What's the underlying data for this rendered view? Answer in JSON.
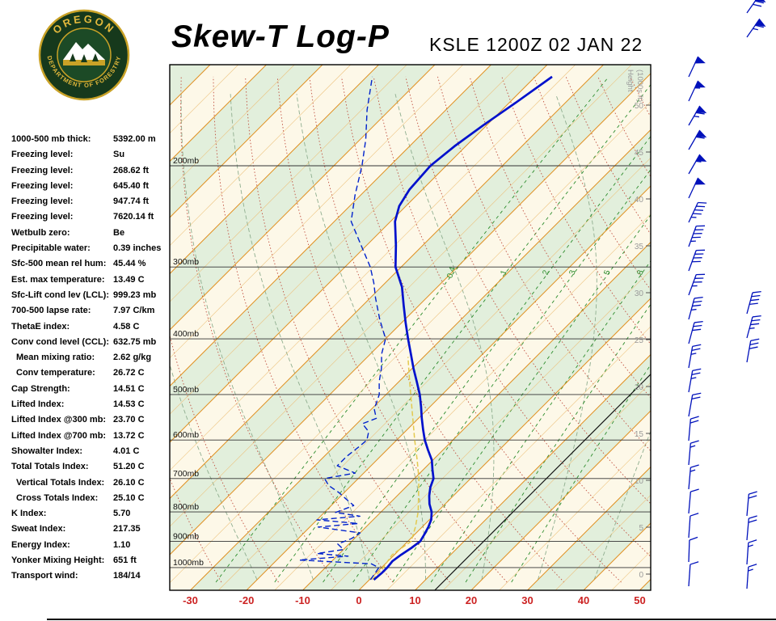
{
  "header": {
    "title": "Skew-T Log-P",
    "station_line": "KSLE 1200Z 02 JAN 22",
    "logo_top": "OREGON",
    "logo_bottom": "DEPARTMENT OF FORESTRY"
  },
  "indices": [
    {
      "label": "1000-500 mb thick:",
      "value": "5392.00 m"
    },
    {
      "label": "Freezing level:",
      "value": "Su"
    },
    {
      "label": "Freezing level:",
      "value": "268.62 ft"
    },
    {
      "label": "Freezing level:",
      "value": "645.40 ft"
    },
    {
      "label": "Freezing level:",
      "value": "947.74 ft"
    },
    {
      "label": "Freezing level:",
      "value": "7620.14 ft"
    },
    {
      "label": "Wetbulb zero:",
      "value": "Be"
    },
    {
      "label": "Precipitable water:",
      "value": "0.39 inches"
    },
    {
      "label": "Sfc-500 mean rel hum:",
      "value": "45.44 %"
    },
    {
      "label": "Est. max temperature:",
      "value": "13.49 C"
    },
    {
      "label": "Sfc-Lift cond lev (LCL):",
      "value": "999.23 mb"
    },
    {
      "label": "700-500 lapse rate:",
      "value": "7.97 C/km"
    },
    {
      "label": "ThetaE index:",
      "value": "4.58 C"
    },
    {
      "label": "Conv cond level (CCL):",
      "value": "632.75 mb"
    },
    {
      "label": "Mean mixing ratio:",
      "value": "2.62 g/kg",
      "indent": true
    },
    {
      "label": "Conv temperature:",
      "value": "26.72 C",
      "indent": true
    },
    {
      "label": "Cap Strength:",
      "value": "14.51 C"
    },
    {
      "label": "Lifted Index:",
      "value": "14.53 C"
    },
    {
      "label": "Lifted Index @300 mb:",
      "value": "23.70 C"
    },
    {
      "label": "Lifted Index @700 mb:",
      "value": "13.72 C"
    },
    {
      "label": "Showalter Index:",
      "value": "4.01 C"
    },
    {
      "label": "Total Totals Index:",
      "value": "51.20 C"
    },
    {
      "label": "Vertical Totals Index:",
      "value": "26.10 C",
      "indent": true
    },
    {
      "label": "Cross Totals Index:",
      "value": "25.10 C",
      "indent": true
    },
    {
      "label": "K Index:",
      "value": "5.70"
    },
    {
      "label": "Sweat Index:",
      "value": "217.35"
    },
    {
      "label": "Energy Index:",
      "value": "1.10"
    },
    {
      "label": "Yonker Mixing Height:",
      "value": "651 ft"
    },
    {
      "label": "Transport wind:",
      "value": "184/14"
    }
  ],
  "chart_data": {
    "type": "line",
    "title": "Skew-T Log-P sounding",
    "station": "KSLE 1200Z 02 JAN 22",
    "pressure_labels": [
      "200mb",
      "300mb",
      "400mb",
      "500mb",
      "600mb",
      "700mb",
      "800mb",
      "900mb",
      "1000mb"
    ],
    "pressure_lines_mb": [
      200,
      300,
      400,
      500,
      600,
      700,
      800,
      900,
      1000
    ],
    "temp_ticks_c": [
      -30,
      -20,
      -10,
      0,
      10,
      20,
      30,
      40,
      50
    ],
    "height_labels_kft": [
      0,
      5,
      10,
      15,
      20,
      25,
      30,
      35,
      40,
      45,
      50
    ],
    "height_axis_title_1": "Height",
    "height_axis_title_2": "(1000s ft)",
    "mixing_ratio_gkg": [
      0.4,
      1,
      2,
      3,
      5,
      8
    ],
    "mixing_ratio_extra": [
      12,
      20
    ],
    "dry_adiabats_theta_c": [
      -30,
      -20,
      -10,
      0,
      10,
      20,
      30,
      40,
      50,
      60,
      70,
      80,
      90,
      100,
      110,
      120,
      130,
      140,
      150,
      160,
      170,
      180
    ],
    "moist_adiabats_start_c": [
      -20,
      -10,
      0,
      10,
      20,
      30,
      40
    ],
    "isotherm_step_c": 5,
    "reference_line_c": 13.5,
    "series": {
      "temperature_c": [
        [
          1050,
          0.8
        ],
        [
          1020,
          1.0
        ],
        [
          1000,
          1.0
        ],
        [
          975,
          0.8
        ],
        [
          950,
          1.2
        ],
        [
          925,
          1.8
        ],
        [
          900,
          2.2
        ],
        [
          875,
          1.7
        ],
        [
          850,
          1.1
        ],
        [
          825,
          0.3
        ],
        [
          800,
          -1.0
        ],
        [
          775,
          -2.8
        ],
        [
          750,
          -4.3
        ],
        [
          725,
          -5.6
        ],
        [
          700,
          -6.6
        ],
        [
          675,
          -8.4
        ],
        [
          650,
          -10.2
        ],
        [
          625,
          -12.6
        ],
        [
          600,
          -15.0
        ],
        [
          575,
          -17.2
        ],
        [
          550,
          -19.4
        ],
        [
          525,
          -21.6
        ],
        [
          500,
          -24.0
        ],
        [
          475,
          -26.8
        ],
        [
          450,
          -29.8
        ],
        [
          425,
          -32.8
        ],
        [
          400,
          -36.0
        ],
        [
          375,
          -39.3
        ],
        [
          350,
          -42.7
        ],
        [
          325,
          -46.3
        ],
        [
          300,
          -51.0
        ],
        [
          275,
          -54.8
        ],
        [
          250,
          -59.2
        ],
        [
          235,
          -61.2
        ],
        [
          220,
          -62.3
        ],
        [
          200,
          -62.8
        ],
        [
          185,
          -62.0
        ],
        [
          170,
          -60.6
        ],
        [
          155,
          -58.8
        ],
        [
          140,
          -57.0
        ]
      ],
      "dewpoint_c": [
        [
          1050,
          0.2
        ],
        [
          1020,
          -0.2
        ],
        [
          1000,
          -0.5
        ],
        [
          985,
          -2.5
        ],
        [
          970,
          -16.0
        ],
        [
          955,
          -8.0
        ],
        [
          945,
          -14.0
        ],
        [
          930,
          -10.0
        ],
        [
          910,
          -12.0
        ],
        [
          890,
          -10.5
        ],
        [
          870,
          -10.0
        ],
        [
          850,
          -18.5
        ],
        [
          838,
          -12.0
        ],
        [
          826,
          -20.0
        ],
        [
          814,
          -13.0
        ],
        [
          802,
          -18.0
        ],
        [
          780,
          -16.0
        ],
        [
          760,
          -18.5
        ],
        [
          740,
          -21.0
        ],
        [
          720,
          -24.0
        ],
        [
          700,
          -26.0
        ],
        [
          685,
          -21.5
        ],
        [
          665,
          -26.0
        ],
        [
          640,
          -26.0
        ],
        [
          615,
          -25.5
        ],
        [
          600,
          -25.3
        ],
        [
          580,
          -26.5
        ],
        [
          562,
          -29.0
        ],
        [
          550,
          -27.5
        ],
        [
          530,
          -29.5
        ],
        [
          500,
          -31.2
        ],
        [
          475,
          -33.5
        ],
        [
          450,
          -35.5
        ],
        [
          425,
          -38.0
        ],
        [
          400,
          -40.0
        ],
        [
          370,
          -44.5
        ],
        [
          340,
          -49.0
        ],
        [
          320,
          -52.0
        ],
        [
          300,
          -55.5
        ],
        [
          275,
          -61.0
        ],
        [
          250,
          -67.0
        ],
        [
          225,
          -71.0
        ],
        [
          200,
          -75.0
        ],
        [
          180,
          -79.0
        ],
        [
          160,
          -84.0
        ],
        [
          140,
          -89.0
        ]
      ],
      "wetbulb_c": [
        [
          1050,
          0.5
        ],
        [
          1000,
          0.3
        ],
        [
          950,
          -0.4
        ],
        [
          900,
          0.6
        ],
        [
          850,
          -1.2
        ],
        [
          800,
          -3.4
        ],
        [
          750,
          -6.2
        ],
        [
          700,
          -9.2
        ],
        [
          650,
          -12.8
        ],
        [
          600,
          -16.8
        ],
        [
          550,
          -21.0
        ],
        [
          500,
          -25.6
        ],
        [
          460,
          -29.6
        ],
        [
          430,
          -32.8
        ]
      ]
    },
    "wind_barbs": [
      [
        852,
        95,
        50,
        205
      ],
      [
        852,
        125,
        55,
        205
      ],
      [
        852,
        155,
        65,
        210
      ],
      [
        852,
        185,
        60,
        210
      ],
      [
        852,
        215,
        55,
        210
      ],
      [
        852,
        245,
        50,
        205
      ],
      [
        852,
        275,
        45,
        205
      ],
      [
        852,
        305,
        45,
        200
      ],
      [
        852,
        335,
        40,
        200
      ],
      [
        852,
        365,
        35,
        200
      ],
      [
        852,
        395,
        35,
        195
      ],
      [
        852,
        425,
        30,
        195
      ],
      [
        852,
        455,
        25,
        190
      ],
      [
        852,
        485,
        25,
        190
      ],
      [
        852,
        515,
        20,
        190
      ],
      [
        852,
        545,
        20,
        185
      ],
      [
        852,
        575,
        15,
        185
      ],
      [
        852,
        605,
        15,
        185
      ],
      [
        852,
        635,
        10,
        185
      ],
      [
        852,
        665,
        10,
        184
      ],
      [
        852,
        695,
        12,
        182
      ],
      [
        852,
        725,
        14,
        184
      ],
      [
        924,
        16,
        70,
        215
      ],
      [
        924,
        46,
        65,
        215
      ],
      [
        924,
        388,
        40,
        195
      ],
      [
        924,
        418,
        35,
        195
      ],
      [
        924,
        448,
        30,
        190
      ],
      [
        924,
        638,
        20,
        185
      ],
      [
        924,
        668,
        20,
        185
      ],
      [
        924,
        698,
        15,
        184
      ],
      [
        924,
        728,
        15,
        184
      ]
    ],
    "colors": {
      "temperature": "#0011cc",
      "dewpoint": "#0022cc",
      "wetbulb": "#e3c94e",
      "barb": "#0011bb",
      "isotherm_major": "#e09225",
      "isotherm_minor": "#ecc07a",
      "band_green": "#e2efdc",
      "band_cream": "#fdf8e8",
      "dry_adiabat": "#c05040",
      "moist_adiabat": "#8fae8f",
      "mixing_ratio": "#2c8c2c",
      "axis_temp_label": "#cc2222",
      "height_label": "#9a9a9a",
      "pressure_line": "#333333",
      "reference_line": "#111111"
    }
  }
}
